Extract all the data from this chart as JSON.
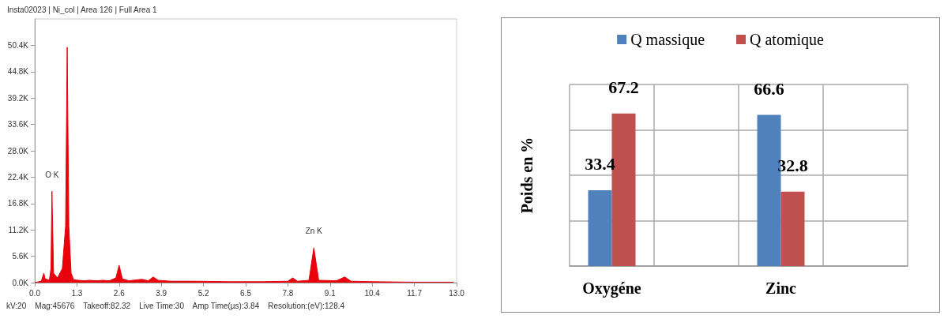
{
  "chart_data": [
    {
      "type": "area",
      "title": "Insta02023 | Ni_col | Area 126 | Full Area 1",
      "x": [
        0.0,
        0.2,
        0.28,
        0.32,
        0.45,
        0.5,
        0.53,
        0.58,
        0.7,
        0.85,
        0.95,
        1.0,
        1.05,
        1.12,
        1.2,
        1.5,
        1.7,
        1.9,
        2.1,
        2.3,
        2.5,
        2.6,
        2.7,
        2.9,
        3.3,
        3.5,
        3.65,
        3.8,
        4.2,
        5.0,
        6.0,
        7.0,
        7.8,
        7.95,
        8.1,
        8.45,
        8.6,
        8.75,
        9.3,
        9.55,
        9.75,
        10.4,
        11.7,
        12.9
      ],
      "series": [
        {
          "color": "#e8000b",
          "values": [
            0.0,
            0.3,
            2.0,
            0.8,
            0.5,
            3.0,
            19.4,
            2.0,
            1.0,
            3.0,
            12.0,
            50.0,
            12.0,
            2.0,
            0.6,
            0.4,
            0.5,
            0.4,
            0.5,
            0.4,
            1.0,
            3.7,
            0.8,
            0.4,
            0.7,
            0.4,
            1.2,
            0.5,
            0.3,
            0.3,
            0.2,
            0.2,
            0.3,
            1.0,
            0.3,
            0.5,
            7.4,
            0.5,
            0.4,
            1.2,
            0.3,
            0.2,
            0.1,
            0.1
          ]
        }
      ],
      "xlim": [
        0,
        13
      ],
      "xticks": [
        {
          "value": 0,
          "label": "0.0"
        },
        1.3,
        2.6,
        3.9,
        5.2,
        6.5,
        7.8,
        9.1,
        10.4,
        11.7,
        {
          "value": 13,
          "label": "13.0"
        }
      ],
      "ylim": [
        0,
        56
      ],
      "yticks": [
        {
          "value": 0,
          "label": "0.0K"
        },
        {
          "value": 5.6,
          "label": "5.6K"
        },
        {
          "value": 11.2,
          "label": "11.2K"
        },
        {
          "value": 16.8,
          "label": "16.8K"
        },
        {
          "value": 22.4,
          "label": "22.4K"
        },
        {
          "value": 28.0,
          "label": "28.0K"
        },
        {
          "value": 33.6,
          "label": "33.6K"
        },
        {
          "value": 39.2,
          "label": "39.2K"
        },
        {
          "value": 44.8,
          "label": "44.8K"
        },
        {
          "value": 50.4,
          "label": "50.4K"
        }
      ],
      "grid": false,
      "legend": false,
      "marker": "none",
      "annotations": [
        {
          "text": "O K",
          "x": 0.53,
          "y": 19.4
        },
        {
          "text": "Zn K",
          "x": 8.6,
          "y": 7.4
        },
        "kV:20    Mag:45676    Takeoff:82.32    Live Time:30    Amp Time(µs):3.84    Resolution:(eV):128.4"
      ]
    },
    {
      "type": "bar",
      "ylabel": "Poids en %",
      "categories": [
        "Oxygéne",
        null,
        "Zinc",
        null
      ],
      "series": [
        {
          "name": "Q massique",
          "color": "#4f81bd",
          "values": [
            33.4,
            null,
            66.6,
            null
          ]
        },
        {
          "name": "Q atomique",
          "color": "#c0504d",
          "values": [
            67.2,
            null,
            32.8,
            null
          ]
        }
      ],
      "ylim": [
        0,
        80
      ],
      "yticks": [
        {
          "value": 0,
          "label": null
        },
        {
          "value": 20,
          "label": null
        },
        {
          "value": 40,
          "label": null
        },
        {
          "value": 60,
          "label": null
        },
        {
          "value": 80,
          "label": null
        }
      ],
      "data_labels": true,
      "grid": true,
      "legend": "top",
      "tick_labels": "x"
    }
  ]
}
